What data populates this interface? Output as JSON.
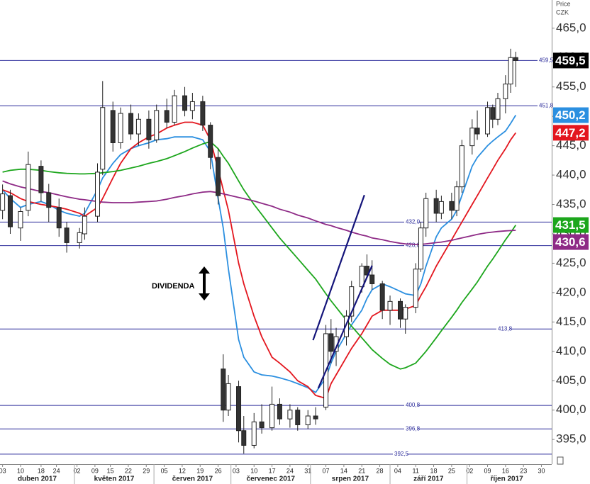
{
  "chart_data": {
    "type": "candlestick",
    "axis_title": "Price",
    "currency": "CZK",
    "annotation": "DIVIDENDA",
    "xlim": [
      "2017-04-02",
      "2017-11-03"
    ],
    "ylim": [
      390.8,
      469.8
    ],
    "yticks": [
      {
        "value": 395,
        "label": "395,0"
      },
      {
        "value": 400,
        "label": "400,0"
      },
      {
        "value": 405,
        "label": "405,0"
      },
      {
        "value": 410,
        "label": "410,0"
      },
      {
        "value": 415,
        "label": "415,0"
      },
      {
        "value": 420,
        "label": "420,0"
      },
      {
        "value": 425,
        "label": "425,0"
      },
      {
        "value": 430,
        "label": "430,0"
      },
      {
        "value": 435,
        "label": "435,0"
      },
      {
        "value": 440,
        "label": "440,0"
      },
      {
        "value": 445,
        "label": "445,0"
      },
      {
        "value": 450,
        "label": "450,0"
      },
      {
        "value": 455,
        "label": "455,0"
      },
      {
        "value": 460,
        "label": "460,0"
      },
      {
        "value": 465,
        "label": "465,0"
      }
    ],
    "xticks": [
      {
        "value": "2017-04-03",
        "label": "03"
      },
      {
        "value": "2017-04-10",
        "label": "10"
      },
      {
        "value": "2017-04-18",
        "label": "18"
      },
      {
        "value": "2017-04-24",
        "label": "24"
      },
      {
        "value": "2017-05-02",
        "label": "02"
      },
      {
        "value": "2017-05-09",
        "label": "09"
      },
      {
        "value": "2017-05-15",
        "label": "15"
      },
      {
        "value": "2017-05-22",
        "label": "22"
      },
      {
        "value": "2017-05-29",
        "label": "29"
      },
      {
        "value": "2017-06-05",
        "label": "05"
      },
      {
        "value": "2017-06-12",
        "label": "12"
      },
      {
        "value": "2017-06-19",
        "label": "19"
      },
      {
        "value": "2017-06-26",
        "label": "26"
      },
      {
        "value": "2017-07-03",
        "label": "03"
      },
      {
        "value": "2017-07-10",
        "label": "10"
      },
      {
        "value": "2017-07-17",
        "label": "17"
      },
      {
        "value": "2017-07-24",
        "label": "24"
      },
      {
        "value": "2017-07-31",
        "label": "31"
      },
      {
        "value": "2017-08-07",
        "label": "07"
      },
      {
        "value": "2017-08-14",
        "label": "14"
      },
      {
        "value": "2017-08-21",
        "label": "21"
      },
      {
        "value": "2017-08-28",
        "label": "28"
      },
      {
        "value": "2017-09-04",
        "label": "04"
      },
      {
        "value": "2017-09-11",
        "label": "11"
      },
      {
        "value": "2017-09-18",
        "label": "18"
      },
      {
        "value": "2017-09-25",
        "label": "25"
      },
      {
        "value": "2017-10-02",
        "label": "02"
      },
      {
        "value": "2017-10-09",
        "label": "09"
      },
      {
        "value": "2017-10-16",
        "label": "16"
      },
      {
        "value": "2017-10-23",
        "label": "23"
      },
      {
        "value": "2017-10-30",
        "label": "30"
      }
    ],
    "months": [
      "duben 2017",
      "květen 2017",
      "červen 2017",
      "červenec 2017",
      "srpen 2017",
      "září 2017",
      "říjen 2017"
    ],
    "candles": {
      "x": [
        "2017-04-03",
        "2017-04-06",
        "2017-04-10",
        "2017-04-13",
        "2017-04-18",
        "2017-04-21",
        "2017-04-25",
        "2017-04-28",
        "2017-05-03",
        "2017-05-05",
        "2017-05-10",
        "2017-05-12",
        "2017-05-16",
        "2017-05-19",
        "2017-05-23",
        "2017-05-26",
        "2017-05-30",
        "2017-06-02",
        "2017-06-06",
        "2017-06-09",
        "2017-06-13",
        "2017-06-16",
        "2017-06-20",
        "2017-06-23",
        "2017-06-26",
        "2017-06-28",
        "2017-06-30",
        "2017-07-04",
        "2017-07-06",
        "2017-07-10",
        "2017-07-13",
        "2017-07-17",
        "2017-07-20",
        "2017-07-24",
        "2017-07-27",
        "2017-07-31",
        "2017-08-03",
        "2017-08-07",
        "2017-08-09",
        "2017-08-11",
        "2017-08-15",
        "2017-08-17",
        "2017-08-21",
        "2017-08-23",
        "2017-08-25",
        "2017-08-29",
        "2017-09-01",
        "2017-09-05",
        "2017-09-07",
        "2017-09-11",
        "2017-09-13",
        "2017-09-15",
        "2017-09-19",
        "2017-09-21",
        "2017-09-25",
        "2017-09-27",
        "2017-09-29",
        "2017-10-03",
        "2017-10-05",
        "2017-10-09",
        "2017-10-11",
        "2017-10-13",
        "2017-10-16",
        "2017-10-18",
        "2017-10-20"
      ],
      "open": [
        434.0,
        436.5,
        431.0,
        434.0,
        441.5,
        437.0,
        434.5,
        431.0,
        428.5,
        430.0,
        433.0,
        441.0,
        451.0,
        445.5,
        450.5,
        447.0,
        449.5,
        446.0,
        451.0,
        449.0,
        453.5,
        451.0,
        452.5,
        448.5,
        443.0,
        407.0,
        400.0,
        404.0,
        396.5,
        394.0,
        398.0,
        397.0,
        401.0,
        398.5,
        400.0,
        397.5,
        399.0,
        400.5,
        413.0,
        410.0,
        412.5,
        416.0,
        421.0,
        424.5,
        423.0,
        421.5,
        417.0,
        418.5,
        415.5,
        417.5,
        424.0,
        431.0,
        436.0,
        433.5,
        435.5,
        434.0,
        438.0,
        445.0,
        448.0,
        447.0,
        451.5,
        449.5,
        453.0,
        455.5,
        460.0
      ],
      "high": [
        438.4,
        437.5,
        434.5,
        444.0,
        442.5,
        438.5,
        436.0,
        432.0,
        431.0,
        434.5,
        442.0,
        456.0,
        452.5,
        451.5,
        452.0,
        450.5,
        451.0,
        452.0,
        453.0,
        454.5,
        455.0,
        454.0,
        453.5,
        449.0,
        444.5,
        409.5,
        406.0,
        405.0,
        399.0,
        399.5,
        401.0,
        404.0,
        402.0,
        401.0,
        400.5,
        400.0,
        400.5,
        414.5,
        415.5,
        414.0,
        417.0,
        422.0,
        425.0,
        426.5,
        425.5,
        422.0,
        419.5,
        419.0,
        418.0,
        425.0,
        432.0,
        437.0,
        437.5,
        436.5,
        437.0,
        439.0,
        446.0,
        449.5,
        451.0,
        452.5,
        452.0,
        454.0,
        457.0,
        461.5,
        461.0
      ],
      "low": [
        432.5,
        430.0,
        428.8,
        433.0,
        435.5,
        432.0,
        429.5,
        426.8,
        427.5,
        429.0,
        432.0,
        440.0,
        444.0,
        444.5,
        446.0,
        445.0,
        444.5,
        445.5,
        448.0,
        448.5,
        450.0,
        449.5,
        447.5,
        441.0,
        435.0,
        398.0,
        399.0,
        394.5,
        392.6,
        393.5,
        396.0,
        396.5,
        397.5,
        397.0,
        396.5,
        396.8,
        397.5,
        400.0,
        408.0,
        407.5,
        411.0,
        415.0,
        420.0,
        422.5,
        420.5,
        415.5,
        414.5,
        414.0,
        413.0,
        416.5,
        423.5,
        429.5,
        432.0,
        432.5,
        432.5,
        433.0,
        437.0,
        443.5,
        446.0,
        446.5,
        448.0,
        448.5,
        450.5,
        454.0,
        455.0
      ],
      "close": [
        436.8,
        431.2,
        433.8,
        441.8,
        437.0,
        434.5,
        431.0,
        428.5,
        430.2,
        433.0,
        440.5,
        451.5,
        445.5,
        450.5,
        447.0,
        449.5,
        446.0,
        451.0,
        449.0,
        453.5,
        451.0,
        452.5,
        448.5,
        443.0,
        436.5,
        400.0,
        404.5,
        396.5,
        394.0,
        398.0,
        397.0,
        401.0,
        398.5,
        400.0,
        397.5,
        399.0,
        398.5,
        413.0,
        410.0,
        412.5,
        416.0,
        421.0,
        424.5,
        423.0,
        421.5,
        417.0,
        418.5,
        415.5,
        417.5,
        424.0,
        431.0,
        436.0,
        433.5,
        435.5,
        434.0,
        438.0,
        445.0,
        448.0,
        447.0,
        451.5,
        449.5,
        453.0,
        455.5,
        460.0,
        459.5
      ],
      "last_label": "459,5"
    },
    "series": [
      {
        "color": "#2b8fe0",
        "end_label": "450,2",
        "values": [
          437.5,
          436,
          434.5,
          435,
          435.5,
          435,
          434,
          433.5,
          433,
          433.5,
          437.5,
          439.5,
          442,
          443.5,
          444.5,
          445,
          445.5,
          446,
          446.2,
          446.5,
          446.5,
          446.5,
          446,
          444,
          436,
          431,
          424,
          412,
          409,
          406.5,
          406,
          405.8,
          405.5,
          405,
          404.5,
          403.8,
          403,
          405.5,
          408,
          410,
          413,
          414.5,
          417,
          419,
          420.5,
          421.5,
          421,
          420.2,
          419.8,
          419.5,
          421.5,
          424.5,
          429.5,
          431,
          432.5,
          434,
          436.5,
          441.5,
          443,
          445,
          445.8,
          446.5,
          447.5,
          448.8,
          450.2
        ]
      },
      {
        "color": "#e3161e",
        "end_label": "447,2",
        "values": [
          437.5,
          437,
          436,
          435.5,
          435,
          434.8,
          434.5,
          434.2,
          433.5,
          433,
          434.5,
          436,
          439.5,
          442,
          444.5,
          445.5,
          446.5,
          447,
          448,
          448.5,
          449,
          449,
          448.5,
          446,
          441,
          437.5,
          434,
          425,
          421.5,
          416,
          412.5,
          409,
          408,
          406.5,
          405,
          404,
          402.5,
          402,
          404.5,
          406,
          409,
          410.5,
          413,
          414.5,
          416,
          417,
          417,
          417,
          417.2,
          417.8,
          419.5,
          421,
          424.5,
          426,
          429,
          430.5,
          432,
          435,
          436.5,
          439.5,
          441,
          442.5,
          444.5,
          446,
          447.2
        ]
      },
      {
        "color": "#1ca61c",
        "end_label": "431,5",
        "values": [
          440.5,
          440.8,
          441,
          441,
          440.8,
          440.6,
          440.4,
          440.3,
          440.2,
          440.2,
          440.3,
          440.4,
          440.6,
          440.8,
          441.2,
          441.5,
          442,
          442.3,
          442.8,
          443.3,
          444,
          444.6,
          445.3,
          445.7,
          444.5,
          443.2,
          442,
          439,
          437.5,
          435,
          433.3,
          431,
          429.3,
          427.3,
          425.8,
          423.8,
          422.3,
          419.8,
          418.6,
          417.5,
          415.3,
          414.3,
          412.3,
          411.3,
          410.3,
          408.8,
          407.8,
          407,
          407.2,
          408,
          409,
          410,
          412.3,
          413.5,
          415.8,
          417,
          418.3,
          420.6,
          421.8,
          424.5,
          425.7,
          427,
          429,
          430.2,
          431.5
        ]
      },
      {
        "color": "#8e2a86",
        "end_label": "430,6",
        "values": [
          439,
          438.5,
          438,
          437.7,
          437.2,
          437,
          436.6,
          436.3,
          435.9,
          435.8,
          435.5,
          435.4,
          435.3,
          435.3,
          435.3,
          435.4,
          435.5,
          435.6,
          435.9,
          436.2,
          436.5,
          436.8,
          437.1,
          437.2,
          437,
          436.8,
          436.6,
          436.2,
          436,
          435.6,
          435.2,
          434.7,
          434.2,
          433.7,
          433.2,
          432.7,
          432.2,
          431.6,
          431.4,
          431.1,
          430.6,
          430.3,
          429.8,
          429.6,
          429.3,
          429,
          428.7,
          428.4,
          428.3,
          428.2,
          428.2,
          428.3,
          428.5,
          428.6,
          428.9,
          429.1,
          429.3,
          429.7,
          429.9,
          430.2,
          430.3,
          430.4,
          430.5,
          430.55,
          430.6
        ]
      }
    ],
    "levels": [
      {
        "value": 459.5,
        "label": "459,5"
      },
      {
        "value": 451.8,
        "label": "451,8"
      },
      {
        "value": 432.0,
        "label": "432,0"
      },
      {
        "value": 428.0,
        "label": "428,0"
      },
      {
        "value": 413.8,
        "label": "413,8"
      },
      {
        "value": 400.8,
        "label": "400,8"
      },
      {
        "value": 396.8,
        "label": "396,8"
      },
      {
        "value": 392.5,
        "label": "392,5"
      }
    ],
    "level_color": "#2a2a9a",
    "trendlines": [
      {
        "x": [
          "2017-08-02",
          "2017-08-22"
        ],
        "y": [
          411.9,
          436.6
        ]
      },
      {
        "x": [
          "2017-08-04",
          "2017-08-25"
        ],
        "y": [
          403.7,
          424.6
        ]
      }
    ],
    "trendline_color": "#14147a"
  }
}
